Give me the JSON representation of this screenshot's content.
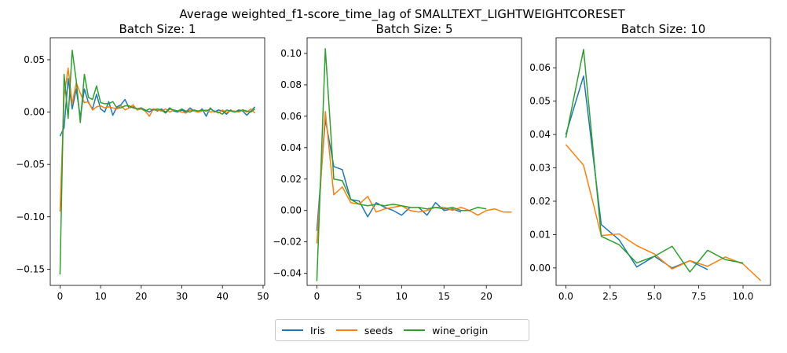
{
  "title": "Average weighted_f1-score_time_lag of SMALLTEXT_LIGHTWEIGHTCORESET",
  "legend": {
    "placement": "bottom-center",
    "entries": [
      {
        "name": "Iris",
        "color": "#1f77b4"
      },
      {
        "name": "seeds",
        "color": "#ff7f0e"
      },
      {
        "name": "wine_origin",
        "color": "#2ca02c"
      }
    ]
  },
  "chart_data": [
    {
      "type": "line",
      "title": "Batch Size: 1",
      "xlim": [
        -2.4,
        50.4
      ],
      "ylim": [
        -0.1655,
        0.071
      ],
      "xticks": [
        0,
        10,
        20,
        30,
        40,
        50
      ],
      "yticks": [
        -0.15,
        -0.1,
        -0.05,
        0.0,
        0.05
      ],
      "ytick_labels": [
        "−0.15",
        "−0.10",
        "−0.05",
        "0.00",
        "0.05"
      ],
      "grid": false,
      "series": [
        {
          "name": "Iris",
          "color": "#1f77b4",
          "x": [
            0,
            1,
            2,
            3,
            4,
            5,
            6,
            7,
            8,
            9,
            10,
            11,
            12,
            13,
            14,
            15,
            16,
            17,
            18,
            19,
            20,
            21,
            22,
            23,
            24,
            25,
            26,
            27,
            28,
            29,
            30,
            31,
            32,
            33,
            34,
            35,
            36,
            37,
            38,
            39,
            40,
            41,
            42,
            43,
            44,
            45,
            46,
            47,
            48
          ],
          "y": [
            -0.023,
            -0.015,
            0.032,
            0.003,
            0.022,
            -0.005,
            0.022,
            0.009,
            0.003,
            0.017,
            0.003,
            0.0,
            0.01,
            -0.003,
            0.005,
            0.007,
            0.012,
            0.004,
            0.005,
            0.003,
            0.004,
            0.002,
            0.0,
            0.003,
            0.001,
            0.003,
            0.0,
            0.004,
            0.001,
            0.0,
            0.002,
            0.0,
            0.004,
            0.001,
            0.0,
            0.003,
            -0.004,
            0.004,
            0.0,
            0.002,
            0.001,
            -0.002,
            0.002,
            0.0,
            0.002,
            0.001,
            -0.003,
            0.001,
            0.005
          ]
        },
        {
          "name": "seeds",
          "color": "#ff7f0e",
          "x": [
            0,
            1,
            2,
            3,
            4,
            5,
            6,
            7,
            8,
            9,
            10,
            11,
            12,
            13,
            14,
            15,
            16,
            17,
            18,
            19,
            20,
            21,
            22,
            23,
            24,
            25,
            26,
            27,
            28,
            29,
            30,
            31,
            32,
            33,
            34,
            35,
            36,
            37,
            38,
            39,
            40,
            41,
            42,
            43,
            44,
            45,
            46,
            47,
            48
          ],
          "y": [
            -0.095,
            0.015,
            0.042,
            0.008,
            0.028,
            0.018,
            0.009,
            0.01,
            0.002,
            0.005,
            0.006,
            0.004,
            0.005,
            0.004,
            0.003,
            0.006,
            0.002,
            0.004,
            0.007,
            0.002,
            0.003,
            0.001,
            -0.004,
            0.003,
            0.002,
            0.001,
            0.003,
            0.0,
            0.002,
            0.001,
            0.0,
            -0.001,
            0.002,
            0.001,
            0.0,
            0.001,
            0.002,
            0.0,
            0.001,
            -0.001,
            0.002,
            0.0,
            0.001,
            0.001,
            0.0,
            0.002,
            0.0,
            0.003,
            -0.001
          ]
        },
        {
          "name": "wine_origin",
          "color": "#2ca02c",
          "x": [
            0,
            1,
            2,
            3,
            4,
            5,
            6,
            7,
            8,
            9,
            10,
            11,
            12,
            13,
            14,
            15,
            16,
            17,
            18,
            19,
            20,
            21,
            22,
            23,
            24,
            25,
            26,
            27,
            28,
            29,
            30,
            31,
            32,
            33,
            34,
            35,
            36,
            37,
            38,
            39,
            40,
            41,
            42,
            43,
            44,
            45,
            46,
            47,
            48
          ],
          "y": [
            -0.155,
            0.036,
            -0.006,
            0.059,
            0.03,
            -0.01,
            0.036,
            0.014,
            0.012,
            0.025,
            0.009,
            0.008,
            0.008,
            0.01,
            0.004,
            0.004,
            0.006,
            0.006,
            0.004,
            0.003,
            0.004,
            0.001,
            0.003,
            0.002,
            0.003,
            0.002,
            -0.001,
            0.003,
            0.002,
            0.001,
            0.003,
            0.001,
            0.0,
            0.002,
            0.001,
            0.002,
            0.001,
            0.003,
            0.001,
            0.0,
            -0.002,
            0.002,
            0.001,
            0.0,
            0.001,
            0.002,
            0.001,
            0.0,
            0.003
          ]
        }
      ]
    },
    {
      "type": "line",
      "title": "Batch Size: 5",
      "xlim": [
        -1.15,
        24.15
      ],
      "ylim": [
        -0.0477,
        0.11
      ],
      "xticks": [
        0,
        5,
        10,
        15,
        20
      ],
      "yticks": [
        -0.04,
        -0.02,
        0.0,
        0.02,
        0.04,
        0.06,
        0.08,
        0.1
      ],
      "ytick_labels": [
        "−0.04",
        "−0.02",
        "0.00",
        "0.02",
        "0.04",
        "0.06",
        "0.08",
        "0.10"
      ],
      "grid": false,
      "series": [
        {
          "name": "Iris",
          "color": "#1f77b4",
          "x": [
            0,
            1,
            2,
            3,
            4,
            5,
            6,
            7,
            8,
            9,
            10,
            11,
            12,
            13,
            14,
            15,
            16,
            17
          ],
          "y": [
            -0.013,
            0.058,
            0.028,
            0.026,
            0.007,
            0.006,
            -0.004,
            0.005,
            0.002,
            0.0,
            -0.003,
            0.002,
            0.002,
            -0.003,
            0.005,
            0.0,
            0.001,
            -0.001
          ]
        },
        {
          "name": "seeds",
          "color": "#ff7f0e",
          "x": [
            0,
            1,
            2,
            3,
            4,
            5,
            6,
            7,
            8,
            9,
            10,
            11,
            12,
            13,
            14,
            15,
            16,
            17,
            18,
            19,
            20,
            21,
            22,
            23
          ],
          "y": [
            -0.021,
            0.063,
            0.01,
            0.015,
            0.005,
            0.004,
            0.009,
            -0.001,
            0.001,
            0.002,
            0.003,
            0.0,
            -0.001,
            0.0,
            0.002,
            0.002,
            0.0,
            0.002,
            0.0,
            -0.003,
            0.0,
            0.001,
            -0.001,
            -0.001
          ]
        },
        {
          "name": "wine_origin",
          "color": "#2ca02c",
          "x": [
            0,
            1,
            2,
            3,
            4,
            5,
            6,
            7,
            8,
            9,
            10,
            11,
            12,
            13,
            14,
            15,
            16,
            17,
            18,
            19,
            20
          ],
          "y": [
            -0.045,
            0.103,
            0.02,
            0.019,
            0.007,
            0.004,
            0.003,
            0.004,
            0.003,
            0.004,
            0.003,
            0.002,
            0.002,
            0.001,
            0.002,
            0.001,
            0.002,
            0.0,
            0.0,
            0.002,
            0.001
          ]
        }
      ]
    },
    {
      "type": "line",
      "title": "Batch Size: 10",
      "xlim": [
        -0.55,
        11.55
      ],
      "ylim": [
        -0.00522,
        0.069
      ],
      "xticks": [
        0.0,
        2.5,
        5.0,
        7.5,
        10.0
      ],
      "xtick_labels": [
        "0.0",
        "2.5",
        "5.0",
        "7.5",
        "10.0"
      ],
      "yticks": [
        0.0,
        0.01,
        0.02,
        0.03,
        0.04,
        0.05,
        0.06
      ],
      "ytick_labels": [
        "0.00",
        "0.01",
        "0.02",
        "0.03",
        "0.04",
        "0.05",
        "0.06"
      ],
      "grid": false,
      "series": [
        {
          "name": "Iris",
          "color": "#1f77b4",
          "x": [
            0,
            1,
            2,
            3,
            4,
            5,
            6,
            7,
            8
          ],
          "y": [
            0.04,
            0.0575,
            0.013,
            0.0085,
            0.0003,
            0.0035,
            0.0,
            0.0022,
            -0.0005
          ]
        },
        {
          "name": "seeds",
          "color": "#ff7f0e",
          "x": [
            0,
            1,
            2,
            3,
            4,
            5,
            6,
            7,
            8,
            9,
            10,
            11
          ],
          "y": [
            0.037,
            0.0308,
            0.0097,
            0.0102,
            0.0067,
            0.0042,
            -0.0003,
            0.0022,
            0.0005,
            0.0033,
            0.0012,
            -0.0038
          ]
        },
        {
          "name": "wine_origin",
          "color": "#2ca02c",
          "x": [
            0,
            1,
            2,
            3,
            4,
            5,
            6,
            7,
            8,
            9,
            10
          ],
          "y": [
            0.039,
            0.0655,
            0.0095,
            0.007,
            0.0015,
            0.0035,
            0.0065,
            -0.0012,
            0.0053,
            0.0025,
            0.0015
          ]
        }
      ]
    }
  ]
}
